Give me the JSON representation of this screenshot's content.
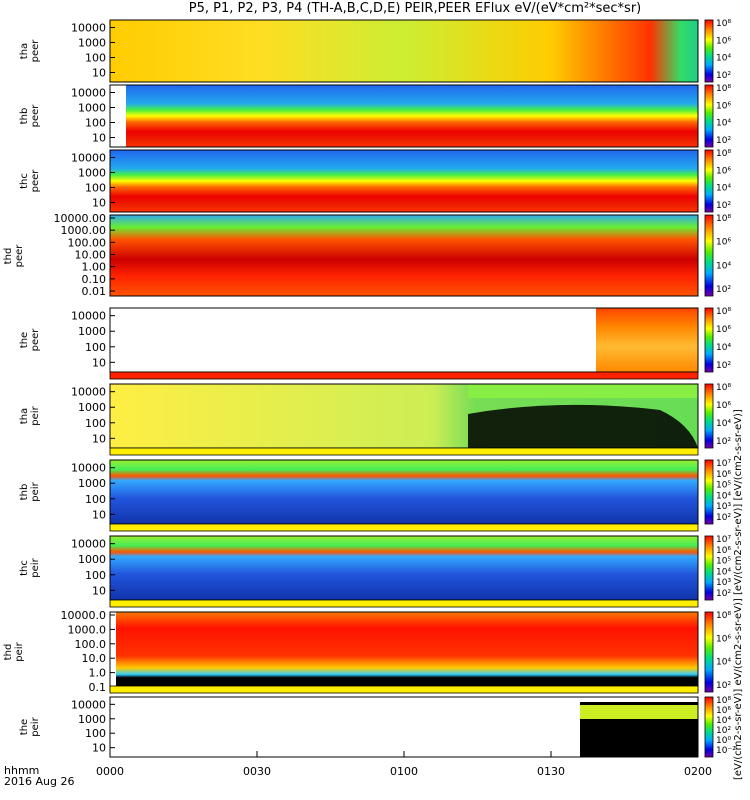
{
  "title": "P5, P1, P2, P3, P4 (TH-A,B,C,D,E) PEIR,PEER EFlux eV/(eV*cm²*sec*sr)",
  "x_ticks": [
    "0000",
    "0030",
    "0100",
    "0130",
    "0200"
  ],
  "footer": {
    "line1": "hhmm",
    "line2": "2016 Aug 26"
  },
  "colorbar_units_label": "[eV/(cm2-s-sr-eV)] eV/(cm2-s-sr-eV)] [eV/(cm2-s-sr-eV)] [eV/(cm2-s-sr-eV)]",
  "chart_data": {
    "type": "heatmap",
    "time_range": [
      "2016-08-26 00:00",
      "2016-08-26 02:00"
    ],
    "panels": [
      {
        "probe": "tha",
        "species": "peer",
        "label": "tha\npeer",
        "y_ticks": [
          "10",
          "100",
          "1000",
          "10000"
        ],
        "cbar_ticks": [
          "10²",
          "10⁴",
          "10⁶"
        ],
        "cbar_max": "10⁸"
      },
      {
        "probe": "thb",
        "species": "peer",
        "label": "thb\npeer",
        "y_ticks": [
          "10",
          "100",
          "1000",
          "10000"
        ],
        "cbar_ticks": [
          "10²",
          "10⁴",
          "10⁶"
        ],
        "cbar_max": "10⁸"
      },
      {
        "probe": "thc",
        "species": "peer",
        "label": "thc\npeer",
        "y_ticks": [
          "10",
          "100",
          "1000",
          "10000"
        ],
        "cbar_ticks": [
          "10²",
          "10⁴",
          "10⁶"
        ],
        "cbar_max": "10⁸"
      },
      {
        "probe": "thd",
        "species": "peer",
        "label": "thd\npeer",
        "y_ticks": [
          "0.01",
          "0.10",
          "1.00",
          "10.00",
          "100.00",
          "1000.00",
          "10000.00"
        ],
        "cbar_ticks": [
          "10²",
          "10⁴",
          "10⁶"
        ],
        "cbar_max": "10⁸"
      },
      {
        "probe": "the",
        "species": "peer",
        "label": "the\npeer",
        "y_ticks": [
          "10",
          "100",
          "1000",
          "10000"
        ],
        "cbar_ticks": [
          "10²",
          "10⁴",
          "10⁶"
        ],
        "cbar_max": "10⁸"
      },
      {
        "probe": "tha",
        "species": "peir",
        "label": "tha\npeir",
        "y_ticks": [
          "10",
          "100",
          "1000",
          "10000"
        ],
        "cbar_ticks": [
          "10²",
          "10⁴",
          "10⁶"
        ],
        "cbar_max": "10⁸"
      },
      {
        "probe": "thb",
        "species": "peir",
        "label": "thb\npeir",
        "y_ticks": [
          "10",
          "100",
          "1000",
          "10000"
        ],
        "cbar_ticks": [
          "10²",
          "10³",
          "10⁴",
          "10⁵",
          "10⁶"
        ],
        "cbar_max": "10⁷"
      },
      {
        "probe": "thc",
        "species": "peir",
        "label": "thc\npeir",
        "y_ticks": [
          "10",
          "100",
          "1000",
          "10000"
        ],
        "cbar_ticks": [
          "10²",
          "10³",
          "10⁴",
          "10⁵",
          "10⁶"
        ],
        "cbar_max": "10⁷"
      },
      {
        "probe": "thd",
        "species": "peir",
        "label": "thd\npeir",
        "y_ticks": [
          "0.1",
          "1.0",
          "10.0",
          "100.0",
          "1000.0",
          "10000.0"
        ],
        "cbar_ticks": [
          "10²",
          "10⁴",
          "10⁶"
        ],
        "cbar_max": "10⁸"
      },
      {
        "probe": "the",
        "species": "peir",
        "label": "the\npeir",
        "y_ticks": [
          "10",
          "100",
          "1000",
          "10000"
        ],
        "cbar_ticks": [
          "10⁻²",
          "10⁰",
          "10²",
          "10⁴",
          "10⁶"
        ],
        "cbar_max": "10⁸"
      }
    ]
  }
}
